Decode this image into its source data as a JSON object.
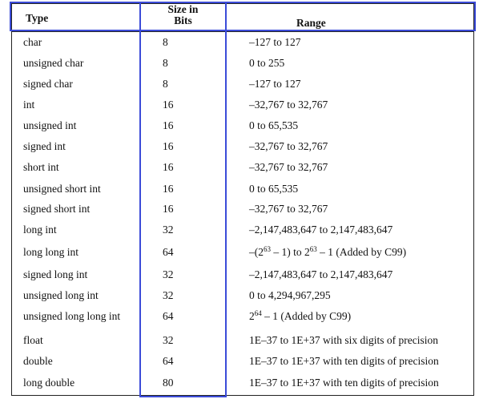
{
  "table": {
    "headers": {
      "type": "Type",
      "size_line1": "Size in",
      "size_line2": "Bits",
      "range": "Range"
    },
    "rows": [
      {
        "type": "char",
        "bits": "8",
        "range": "–127 to 127"
      },
      {
        "type": "unsigned char",
        "bits": "8",
        "range": "0 to 255"
      },
      {
        "type": "signed char",
        "bits": "8",
        "range": "–127 to 127"
      },
      {
        "type": "int",
        "bits": "16",
        "range": "–32,767 to 32,767"
      },
      {
        "type": "unsigned int",
        "bits": "16",
        "range": "0 to 65,535"
      },
      {
        "type": "signed int",
        "bits": "16",
        "range": "–32,767 to 32,767"
      },
      {
        "type": "short int",
        "bits": "16",
        "range": "–32,767 to 32,767"
      },
      {
        "type": "unsigned short int",
        "bits": "16",
        "range": "0 to 65,535"
      },
      {
        "type": "signed short int",
        "bits": "16",
        "range": "–32,767 to 32,767"
      },
      {
        "type": "long int",
        "bits": "32",
        "range": "–2,147,483,647 to 2,147,483,647"
      },
      {
        "type": "long long int",
        "bits": "64",
        "range_parts": [
          "–(2",
          "63",
          " – 1) to 2",
          "63",
          " – 1 (Added by C99)"
        ]
      },
      {
        "type": "signed long int",
        "bits": "32",
        "range": "–2,147,483,647 to 2,147,483,647"
      },
      {
        "type": "unsigned long int",
        "bits": "32",
        "range": "0 to 4,294,967,295"
      },
      {
        "type": "unsigned long long int",
        "bits": "64",
        "range_parts": [
          "2",
          "64",
          " – 1 (Added by C99)"
        ]
      },
      {
        "type": "float",
        "bits": "32",
        "range": "1E–37 to 1E+37 with six digits of precision"
      },
      {
        "type": "double",
        "bits": "64",
        "range": "1E–37 to 1E+37 with ten digits of precision"
      },
      {
        "type": "long double",
        "bits": "80",
        "range": "1E–37 to 1E+37 with ten digits of precision"
      }
    ]
  },
  "colors": {
    "highlight": "#3b4bd8",
    "rule": "#222222",
    "text": "#111111"
  }
}
